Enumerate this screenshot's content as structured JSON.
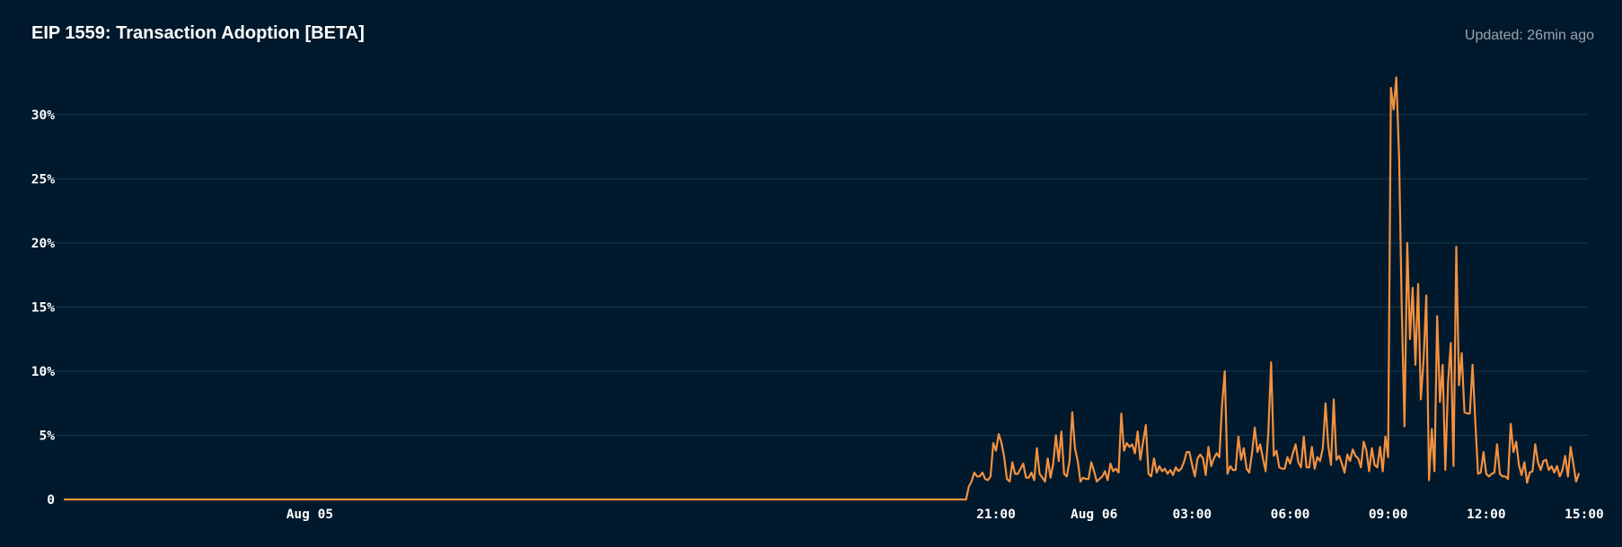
{
  "panel": {
    "title": "EIP 1559: Transaction Adoption [BETA]",
    "updated": "Updated: 26min ago"
  },
  "colors": {
    "background": "#01192c",
    "line": "#f4913f",
    "grid": "#12384d",
    "text": "#ffffff",
    "muted": "#9aa4af"
  },
  "chart_data": {
    "type": "line",
    "title": "EIP 1559: Transaction Adoption [BETA]",
    "xlabel": "",
    "ylabel": "",
    "y_unit": "%",
    "ylim": [
      0,
      33
    ],
    "yticks": [
      0,
      5,
      10,
      15,
      20,
      25,
      30
    ],
    "ytick_labels": [
      "0",
      "5%",
      "10%",
      "15%",
      "20%",
      "25%",
      "30%"
    ],
    "xlim": [
      "Aug 04 16:30",
      "Aug 06 15:05"
    ],
    "xticks": [
      {
        "t": "Aug 05 00:00",
        "label": "Aug 05"
      },
      {
        "t": "Aug 05 21:00",
        "label": "21:00"
      },
      {
        "t": "Aug 06 00:00",
        "label": "Aug 06"
      },
      {
        "t": "Aug 06 03:00",
        "label": "03:00"
      },
      {
        "t": "Aug 06 06:00",
        "label": "06:00"
      },
      {
        "t": "Aug 06 09:00",
        "label": "09:00"
      },
      {
        "t": "Aug 06 12:00",
        "label": "12:00"
      },
      {
        "t": "Aug 06 15:00",
        "label": "15:00"
      }
    ],
    "grid": true,
    "legend": "none",
    "series": [
      {
        "interval_minutes": 5,
        "start": "Aug 05 20:05",
        "leading_zero_from": "Aug 04 16:30",
        "values": [
          0,
          1.0,
          1.4,
          2.1,
          1.8,
          1.8,
          2.1,
          1.6,
          1.5,
          1.8,
          4.4,
          3.8,
          5.1,
          4.4,
          3.3,
          1.6,
          1.4,
          2.9,
          2.0,
          2.0,
          2.4,
          2.8,
          1.7,
          1.7,
          2.1,
          1.5,
          4.0,
          2.0,
          1.7,
          1.4,
          3.2,
          1.7,
          2.8,
          5.0,
          3.0,
          5.3,
          2.0,
          1.8,
          3.0,
          6.8,
          4.0,
          3.0,
          1.4,
          1.7,
          1.6,
          1.6,
          2.9,
          2.2,
          1.4,
          1.6,
          1.8,
          2.2,
          1.5,
          2.8,
          2.2,
          2.4,
          2.1,
          6.7,
          3.8,
          4.4,
          4.1,
          4.3,
          3.6,
          5.3,
          3.1,
          4.5,
          5.8,
          2.0,
          1.8,
          3.2,
          2.1,
          2.6,
          2.2,
          2.4,
          2.0,
          2.3,
          1.9,
          2.5,
          2.2,
          2.4,
          2.9,
          3.7,
          3.7,
          2.7,
          1.8,
          3.2,
          3.5,
          3.2,
          1.9,
          4.1,
          2.6,
          3.2,
          3.6,
          3.3,
          7.4,
          10.0,
          2.0,
          2.6,
          2.3,
          2.3,
          4.9,
          3.1,
          4.0,
          2.4,
          2.1,
          3.6,
          5.6,
          3.7,
          4.3,
          3.2,
          2.2,
          5.2,
          10.7,
          3.4,
          3.8,
          2.5,
          2.4,
          2.4,
          3.3,
          2.8,
          3.6,
          4.3,
          2.9,
          2.5,
          4.9,
          2.5,
          2.5,
          4.1,
          2.4,
          3.3,
          3.0,
          4.0,
          7.5,
          4.2,
          2.7,
          7.8,
          3.1,
          3.4,
          2.8,
          2.1,
          3.5,
          3.0,
          3.9,
          3.4,
          3.2,
          2.5,
          4.5,
          3.8,
          2.2,
          4.0,
          2.7,
          2.5,
          4.1,
          2.2,
          4.9,
          3.3,
          32.1,
          30.4,
          32.9,
          26.7,
          14.8,
          5.7,
          20.0,
          12.5,
          16.5,
          10.5,
          16.8,
          7.8,
          10.9,
          15.9,
          1.5,
          5.5,
          2.2,
          14.3,
          7.6,
          10.5,
          2.3,
          9.2,
          12.2,
          2.6,
          19.7,
          8.9,
          11.4,
          6.8,
          6.7,
          6.7,
          10.5,
          6.0,
          2.0,
          2.1,
          3.7,
          2.0,
          1.8,
          2.0,
          2.1,
          4.3,
          2.0,
          1.8,
          1.8,
          1.6,
          5.9,
          3.7,
          4.5,
          2.7,
          1.9,
          2.9,
          1.3,
          2.1,
          2.2,
          4.3,
          2.9,
          2.3,
          3.0,
          3.1,
          2.3,
          2.6,
          2.1,
          2.6,
          1.8,
          2.3,
          3.4,
          1.8,
          4.1,
          2.8,
          1.4,
          2.0
        ]
      }
    ]
  }
}
